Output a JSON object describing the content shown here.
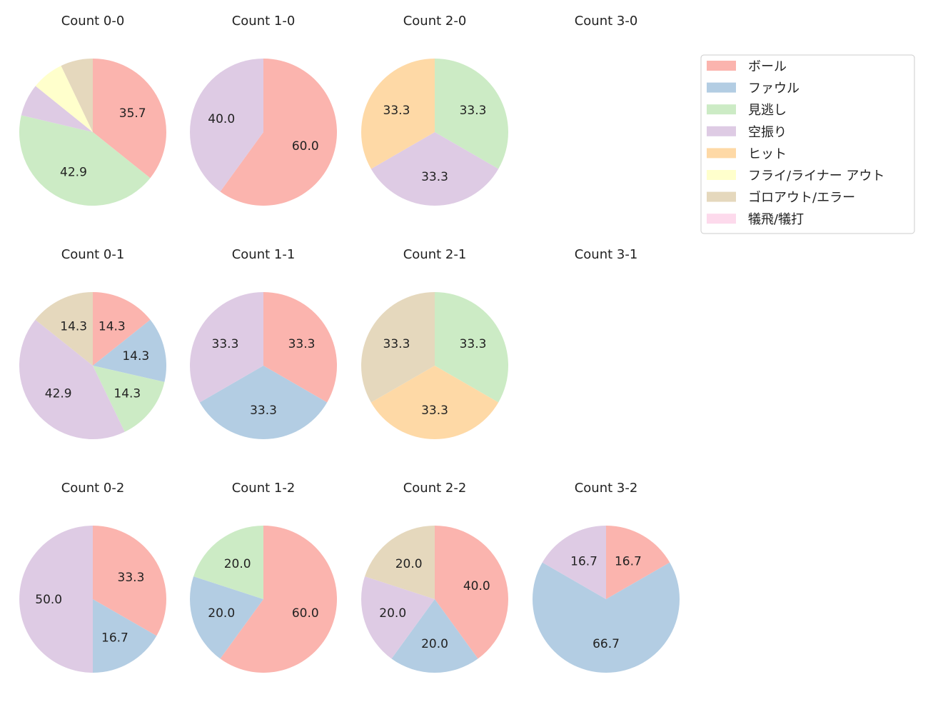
{
  "chart_data": {
    "type": "pie",
    "start_angle": 90,
    "direction": "clockwise",
    "label_format": "percent, 1 decimal (hidden for small slices)",
    "legend": {
      "placement": "top-right",
      "entries": [
        {
          "name": "ボール",
          "color": "#fbb4ae"
        },
        {
          "name": "ファウル",
          "color": "#b3cde3"
        },
        {
          "name": "見逃し",
          "color": "#ccebc5"
        },
        {
          "name": "空振り",
          "color": "#decbe4"
        },
        {
          "name": "ヒット",
          "color": "#fed9a6"
        },
        {
          "name": "フライ/ライナー アウト",
          "color": "#ffffcc"
        },
        {
          "name": "ゴロアウト/エラー",
          "color": "#e5d8bd"
        },
        {
          "name": "犠飛/犠打",
          "color": "#fddaec"
        }
      ]
    },
    "charts": [
      {
        "title": "Count 0-0",
        "row": 0,
        "col": 0,
        "values": [
          35.7,
          0,
          42.9,
          7.1,
          0,
          7.1,
          7.1,
          0
        ],
        "labels_shown": [
          true,
          false,
          true,
          false,
          false,
          false,
          false,
          false
        ]
      },
      {
        "title": "Count 1-0",
        "row": 0,
        "col": 1,
        "values": [
          60.0,
          0,
          0,
          40.0,
          0,
          0,
          0,
          0
        ]
      },
      {
        "title": "Count 2-0",
        "row": 0,
        "col": 2,
        "values": [
          0,
          0,
          33.3,
          33.3,
          33.3,
          0,
          0,
          0
        ]
      },
      {
        "title": "Count 3-0",
        "row": 0,
        "col": 3,
        "values": []
      },
      {
        "title": "Count 0-1",
        "row": 1,
        "col": 0,
        "values": [
          14.3,
          14.3,
          14.3,
          42.9,
          0,
          0,
          14.3,
          0
        ]
      },
      {
        "title": "Count 1-1",
        "row": 1,
        "col": 1,
        "values": [
          33.3,
          33.3,
          0,
          33.3,
          0,
          0,
          0,
          0
        ]
      },
      {
        "title": "Count 2-1",
        "row": 1,
        "col": 2,
        "values": [
          0,
          0,
          33.3,
          0,
          33.3,
          0,
          33.3,
          0
        ]
      },
      {
        "title": "Count 3-1",
        "row": 1,
        "col": 3,
        "values": []
      },
      {
        "title": "Count 0-2",
        "row": 2,
        "col": 0,
        "values": [
          33.3,
          16.7,
          0,
          50.0,
          0,
          0,
          0,
          0
        ]
      },
      {
        "title": "Count 1-2",
        "row": 2,
        "col": 1,
        "values": [
          60.0,
          20.0,
          20.0,
          0,
          0,
          0,
          0,
          0
        ]
      },
      {
        "title": "Count 2-2",
        "row": 2,
        "col": 2,
        "values": [
          40.0,
          20.0,
          0,
          20.0,
          0,
          0,
          20.0,
          0
        ]
      },
      {
        "title": "Count 3-2",
        "row": 2,
        "col": 3,
        "values": [
          16.7,
          66.7,
          0,
          16.7,
          0,
          0,
          0,
          0
        ]
      }
    ]
  }
}
